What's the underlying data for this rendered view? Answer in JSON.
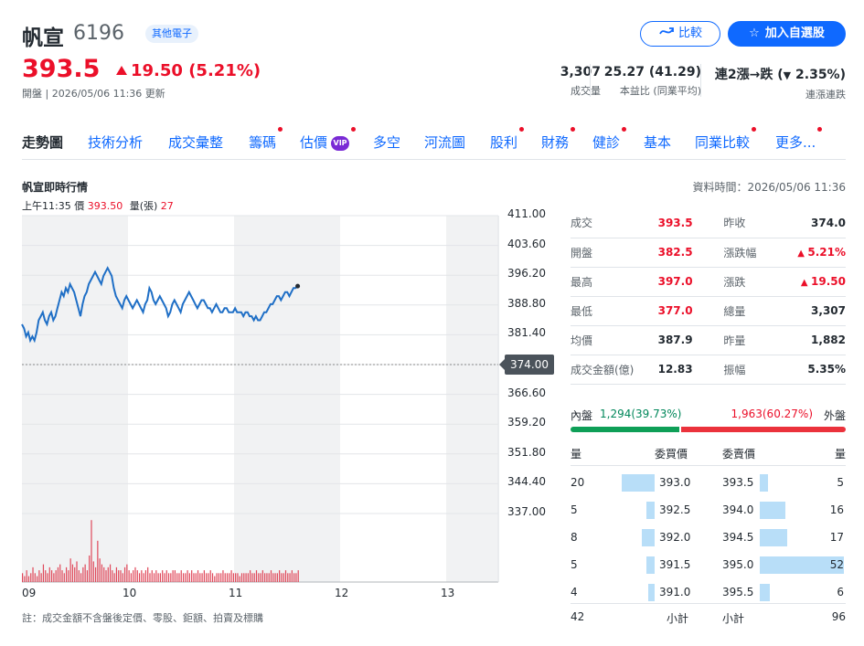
{
  "header": {
    "name": "帆宣",
    "code": "6196",
    "tag": "其他電子",
    "price": "393.5",
    "change": "19.50 (5.21%)",
    "substatus": "開盤 | 2026/05/06 11:36 更新",
    "compare_label": "比較",
    "watch_label": "加入自選股",
    "stats": [
      {
        "value": "3,307",
        "label": "成交量"
      },
      {
        "value": "25.27 (41.29)",
        "label": "本益比 (同業平均)"
      },
      {
        "value_prefix": "連2漲→跌 (",
        "value_pct": "2.35%",
        "value_suffix": ")",
        "label": "連漲連跌"
      }
    ]
  },
  "tabs": [
    {
      "label": "走勢圖",
      "active": true
    },
    {
      "label": "技術分析"
    },
    {
      "label": "成交彙整"
    },
    {
      "label": "籌碼",
      "dot": true
    },
    {
      "label": "估價",
      "vip": "VIP",
      "dot": true
    },
    {
      "label": "多空"
    },
    {
      "label": "河流圖"
    },
    {
      "label": "股利",
      "dot": true
    },
    {
      "label": "財務",
      "dot": true
    },
    {
      "label": "健診",
      "dot": true
    },
    {
      "label": "基本"
    },
    {
      "label": "同業比較",
      "dot": true
    },
    {
      "label": "更多...",
      "dot": true
    }
  ],
  "section": {
    "title": "帆宣即時行情",
    "data_time": "資料時間：2026/05/06 11:36",
    "quote_time": "上午11:35",
    "quote_price_label": "價",
    "quote_price": "393.50",
    "quote_vol_label": "量(張)",
    "quote_vol": "27"
  },
  "chart_data": {
    "type": "line",
    "y_ticks": [
      "411.00",
      "403.60",
      "396.20",
      "388.80",
      "381.40",
      "374.00",
      "366.60",
      "359.20",
      "351.80",
      "344.40",
      "337.00"
    ],
    "x_ticks": [
      "09",
      "10",
      "11",
      "12",
      "13"
    ],
    "ylim": [
      337.0,
      411.0
    ],
    "prev_close": "374.00",
    "price_series": [
      384,
      383,
      381,
      382,
      380,
      381,
      380,
      382,
      385,
      386,
      387,
      385,
      384,
      386,
      387,
      385,
      386,
      388,
      390,
      392,
      391,
      393,
      392,
      394,
      393,
      392,
      390,
      388,
      386,
      389,
      391,
      392,
      394,
      395,
      396,
      397,
      396,
      395,
      394,
      396,
      397,
      398,
      397,
      396,
      393,
      391,
      390,
      389,
      388,
      390,
      391,
      390,
      389,
      388,
      389,
      390,
      389,
      388,
      387,
      389,
      390,
      393,
      392,
      390,
      389,
      390,
      391,
      390,
      389,
      388,
      386,
      387,
      389,
      390,
      389,
      388,
      387,
      389,
      390,
      391,
      392,
      391,
      390,
      389,
      388,
      389,
      390,
      390,
      389,
      388,
      388,
      387,
      388,
      389,
      388,
      387,
      387,
      388,
      388,
      387,
      387,
      387,
      388,
      387,
      387,
      387,
      386,
      387,
      387,
      386,
      386,
      385,
      386,
      385,
      385,
      386,
      387,
      387,
      388,
      389,
      389,
      390,
      391,
      391,
      390,
      391,
      392,
      392,
      391,
      392,
      393,
      393,
      393.5
    ],
    "volume_series": [
      3,
      2,
      4,
      2,
      3,
      5,
      3,
      2,
      4,
      3,
      6,
      4,
      3,
      5,
      4,
      3,
      4,
      5,
      6,
      4,
      3,
      5,
      4,
      8,
      6,
      5,
      7,
      4,
      3,
      5,
      6,
      4,
      9,
      21,
      7,
      5,
      14,
      8,
      6,
      5,
      4,
      5,
      6,
      4,
      3,
      5,
      4,
      4,
      3,
      5,
      6,
      4,
      3,
      4,
      5,
      4,
      3,
      4,
      3,
      4,
      5,
      3,
      4,
      3,
      4,
      3,
      3,
      4,
      3,
      4,
      3,
      3,
      4,
      4,
      3,
      3,
      4,
      3,
      3,
      4,
      3,
      4,
      3,
      3,
      4,
      3,
      3,
      4,
      3,
      3,
      4,
      3,
      2,
      3,
      3,
      3,
      4,
      3,
      3,
      3,
      4,
      3,
      3,
      3,
      2,
      3,
      3,
      3,
      3,
      4,
      3,
      3,
      4,
      3,
      3,
      4,
      3,
      3,
      3,
      4,
      3,
      3,
      3,
      4,
      3,
      3,
      4,
      3,
      3,
      4,
      3,
      3,
      4
    ],
    "volume_max": 22
  },
  "stats_table": [
    {
      "k1": "成交",
      "v1": "393.5",
      "c1": "red",
      "k2": "昨收",
      "v2": "374.0",
      "c2": "dark"
    },
    {
      "k1": "開盤",
      "v1": "382.5",
      "c1": "red",
      "k2": "漲跌幅",
      "v2": "5.21%",
      "c2": "red",
      "tri2": true
    },
    {
      "k1": "最高",
      "v1": "397.0",
      "c1": "red",
      "k2": "漲跌",
      "v2": "19.50",
      "c2": "red",
      "tri2": true
    },
    {
      "k1": "最低",
      "v1": "377.0",
      "c1": "red",
      "k2": "總量",
      "v2": "3,307",
      "c2": "dark"
    },
    {
      "k1": "均價",
      "v1": "387.9",
      "c1": "dark",
      "k2": "昨量",
      "v2": "1,882",
      "c2": "dark"
    },
    {
      "k1": "成交金額(億)",
      "v1": "12.83",
      "c1": "dark",
      "k2": "振幅",
      "v2": "5.35%",
      "c2": "dark"
    }
  ],
  "orderbook": {
    "inner_label": "內盤",
    "inner_value": "1,294",
    "inner_pct": "(39.73%)",
    "outer_value": "1,963",
    "outer_pct": "(60.27%)",
    "outer_label": "外盤",
    "inner_ratio": 0.3973,
    "head_qty": "量",
    "head_bid": "委買價",
    "head_ask": "委賣價",
    "head_qty2": "量",
    "rows": [
      {
        "bq": "20",
        "bp": "393.0",
        "ap": "393.5",
        "aq": "5"
      },
      {
        "bq": "5",
        "bp": "392.5",
        "ap": "394.0",
        "aq": "16"
      },
      {
        "bq": "8",
        "bp": "392.0",
        "ap": "394.5",
        "aq": "17"
      },
      {
        "bq": "5",
        "bp": "391.5",
        "ap": "395.0",
        "aq": "52"
      },
      {
        "bq": "4",
        "bp": "391.0",
        "ap": "395.5",
        "aq": "6"
      }
    ],
    "bid_total": "42",
    "subtotal_label": "小計",
    "ask_total": "96"
  },
  "footnote": "註：成交金額不含盤後定價、零股、鉅額、拍賣及標購"
}
